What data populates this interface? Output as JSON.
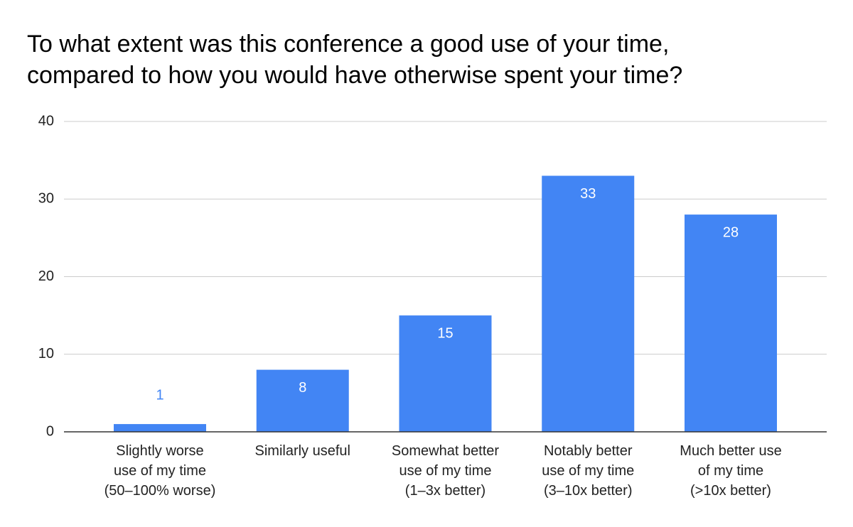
{
  "chart_data": {
    "type": "bar",
    "title": "To what extent was this conference a good use of your time,\ncompared to how you would have otherwise spent your time?",
    "categories": [
      "Slightly worse\nuse of my time\n(50–100% worse)",
      "Similarly useful",
      "Somewhat better\nuse of my time\n(1–3x better)",
      "Notably better\nuse of my time\n(3–10x better)",
      "Much better use\nof my time\n(>10x better)"
    ],
    "values": [
      1,
      8,
      15,
      33,
      28
    ],
    "color": "#4285f4",
    "ylim": [
      0,
      40
    ],
    "yticks": [
      0,
      10,
      20,
      30,
      40
    ],
    "grid": true
  }
}
